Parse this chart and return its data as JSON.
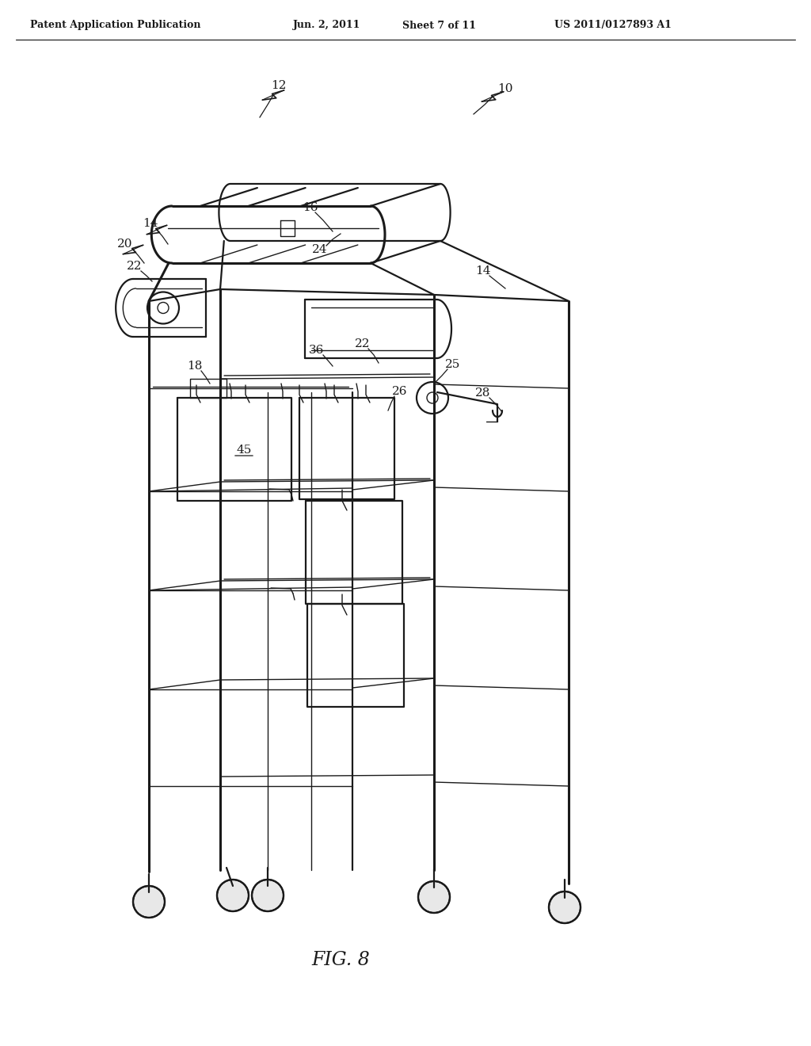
{
  "bg_color": "#ffffff",
  "lc": "#1a1a1a",
  "header_text": "Patent Application Publication",
  "header_date": "Jun. 2, 2011",
  "header_sheet": "Sheet 7 of 11",
  "header_patent": "US 2011/0127893 A1",
  "figure_label": "FIG. 8",
  "lw_thin": 1.0,
  "lw_med": 1.6,
  "lw_thick": 2.2
}
